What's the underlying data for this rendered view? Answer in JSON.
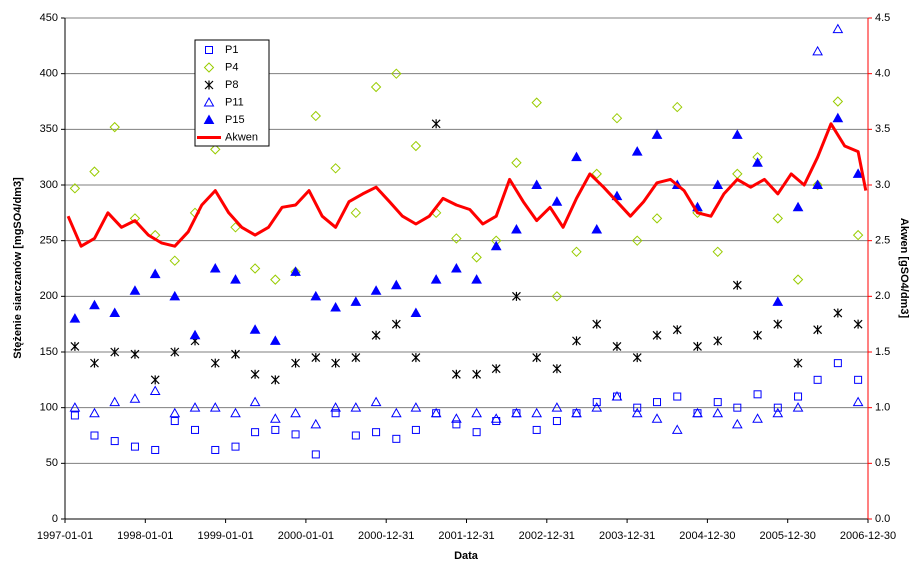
{
  "chart_data": {
    "type": "scatter",
    "x_label": "Data",
    "y_label": "Stężenie siarczanów [mgSO4/dm3]",
    "y2_label": "Akwen [gSO4/dm3]",
    "xlim": [
      "1997-01-01",
      "2006-12-30"
    ],
    "xticks": [
      "1997-01-01",
      "1998-01-01",
      "1999-01-01",
      "2000-01-01",
      "2000-12-31",
      "2001-12-31",
      "2002-12-31",
      "2003-12-31",
      "2004-12-30",
      "2005-12-30",
      "2006-12-30"
    ],
    "ylim": [
      0,
      450
    ],
    "yticks": [
      0,
      50,
      100,
      150,
      200,
      250,
      300,
      350,
      400,
      450
    ],
    "y2lim": [
      0,
      4.5
    ],
    "y2ticks": [
      {
        "value": 0,
        "label": "0.0"
      },
      0.5,
      {
        "value": 1,
        "label": "1.0"
      },
      1.5,
      {
        "value": 2,
        "label": "2.0"
      },
      2.5,
      {
        "value": 3,
        "label": "3.0"
      },
      3.5,
      {
        "value": 4,
        "label": "4.0"
      },
      4.5
    ],
    "grid": true,
    "legend_position": "upper left",
    "series": [
      {
        "name": "P1",
        "marker": "square",
        "color": "#0000ff",
        "x": [
          "1997-02-15",
          "1997-05-15",
          "1997-08-15",
          "1997-11-15",
          "1998-02-15",
          "1998-05-15",
          "1998-08-15",
          "1998-11-15",
          "1999-02-15",
          "1999-05-15",
          "1999-08-15",
          "1999-11-15",
          "2000-02-15",
          "2000-05-15",
          "2000-08-15",
          "2000-11-15",
          "2001-02-15",
          "2001-05-15",
          "2001-08-15",
          "2001-11-15",
          "2002-02-15",
          "2002-05-15",
          "2002-08-15",
          "2002-11-15",
          "2003-02-15",
          "2003-05-15",
          "2003-08-15",
          "2003-11-15",
          "2004-02-15",
          "2004-05-15",
          "2004-08-15",
          "2004-11-15",
          "2005-02-15",
          "2005-05-15",
          "2005-08-15",
          "2005-11-15",
          "2006-02-15",
          "2006-05-15",
          "2006-08-15",
          "2006-11-15"
        ],
        "values": [
          93,
          75,
          70,
          65,
          62,
          88,
          80,
          62,
          65,
          78,
          80,
          76,
          58,
          95,
          75,
          78,
          72,
          80,
          95,
          85,
          78,
          88,
          95,
          80,
          88,
          95,
          105,
          110,
          100,
          105,
          110,
          95,
          105,
          100,
          112,
          100,
          110,
          125,
          140,
          125
        ]
      },
      {
        "name": "P4",
        "marker": "diamond",
        "color": "#99cc00",
        "x": [
          "1997-02-15",
          "1997-05-15",
          "1997-08-15",
          "1997-11-15",
          "1998-02-15",
          "1998-05-15",
          "1998-08-15",
          "1998-11-15",
          "1999-02-15",
          "1999-05-15",
          "1999-08-15",
          "1999-11-15",
          "2000-02-15",
          "2000-05-15",
          "2000-08-15",
          "2000-11-15",
          "2001-02-15",
          "2001-05-15",
          "2001-08-15",
          "2001-11-15",
          "2002-02-15",
          "2002-05-15",
          "2002-08-15",
          "2002-11-15",
          "2003-02-15",
          "2003-05-15",
          "2003-08-15",
          "2003-11-15",
          "2004-02-15",
          "2004-05-15",
          "2004-08-15",
          "2004-11-15",
          "2005-02-15",
          "2005-05-15",
          "2005-08-15",
          "2005-11-15",
          "2006-02-15",
          "2006-05-15",
          "2006-08-15",
          "2006-11-15"
        ],
        "values": [
          297,
          312,
          352,
          270,
          255,
          232,
          275,
          332,
          262,
          225,
          215,
          222,
          362,
          315,
          275,
          388,
          400,
          335,
          275,
          252,
          235,
          250,
          320,
          374,
          200,
          240,
          310,
          360,
          250,
          270,
          370,
          275,
          240,
          310,
          325,
          270,
          215,
          300,
          375,
          255
        ]
      },
      {
        "name": "P8",
        "marker": "asterisk",
        "color": "#000000",
        "x": [
          "1997-02-15",
          "1997-05-15",
          "1997-08-15",
          "1997-11-15",
          "1998-02-15",
          "1998-05-15",
          "1998-08-15",
          "1998-11-15",
          "1999-02-15",
          "1999-05-15",
          "1999-08-15",
          "1999-11-15",
          "2000-02-15",
          "2000-05-15",
          "2000-08-15",
          "2000-11-15",
          "2001-02-15",
          "2001-05-15",
          "2001-08-15",
          "2001-11-15",
          "2002-02-15",
          "2002-05-15",
          "2002-08-15",
          "2002-11-15",
          "2003-02-15",
          "2003-05-15",
          "2003-08-15",
          "2003-11-15",
          "2004-02-15",
          "2004-05-15",
          "2004-08-15",
          "2004-11-15",
          "2005-02-15",
          "2005-05-15",
          "2005-08-15",
          "2005-11-15",
          "2006-02-15",
          "2006-05-15",
          "2006-08-15",
          "2006-11-15"
        ],
        "values": [
          155,
          140,
          150,
          148,
          125,
          150,
          160,
          140,
          148,
          130,
          125,
          140,
          145,
          140,
          145,
          165,
          175,
          145,
          355,
          130,
          130,
          135,
          200,
          145,
          135,
          160,
          175,
          155,
          145,
          165,
          170,
          155,
          160,
          210,
          165,
          175,
          140,
          170,
          185,
          175
        ]
      },
      {
        "name": "P11",
        "marker": "triangle-open",
        "color": "#0000ff",
        "x": [
          "1997-02-15",
          "1997-05-15",
          "1997-08-15",
          "1997-11-15",
          "1998-02-15",
          "1998-05-15",
          "1998-08-15",
          "1998-11-15",
          "1999-02-15",
          "1999-05-15",
          "1999-08-15",
          "1999-11-15",
          "2000-02-15",
          "2000-05-15",
          "2000-08-15",
          "2000-11-15",
          "2001-02-15",
          "2001-05-15",
          "2001-08-15",
          "2001-11-15",
          "2002-02-15",
          "2002-05-15",
          "2002-08-15",
          "2002-11-15",
          "2003-02-15",
          "2003-05-15",
          "2003-08-15",
          "2003-11-15",
          "2004-02-15",
          "2004-05-15",
          "2004-08-15",
          "2004-11-15",
          "2005-02-15",
          "2005-05-15",
          "2005-08-15",
          "2005-11-15",
          "2006-02-15",
          "2006-05-15",
          "2006-08-15",
          "2006-11-15"
        ],
        "values": [
          100,
          95,
          105,
          108,
          115,
          95,
          100,
          100,
          95,
          105,
          90,
          95,
          85,
          100,
          100,
          105,
          95,
          100,
          95,
          90,
          95,
          90,
          95,
          95,
          100,
          95,
          100,
          110,
          95,
          90,
          80,
          95,
          95,
          85,
          90,
          95,
          100,
          420,
          440,
          105
        ]
      },
      {
        "name": "P15",
        "marker": "triangle-filled",
        "color": "#0000ff",
        "x": [
          "1997-02-15",
          "1997-05-15",
          "1997-08-15",
          "1997-11-15",
          "1998-02-15",
          "1998-05-15",
          "1998-08-15",
          "1998-11-15",
          "1999-02-15",
          "1999-05-15",
          "1999-08-15",
          "1999-11-15",
          "2000-02-15",
          "2000-05-15",
          "2000-08-15",
          "2000-11-15",
          "2001-02-15",
          "2001-05-15",
          "2001-08-15",
          "2001-11-15",
          "2002-02-15",
          "2002-05-15",
          "2002-08-15",
          "2002-11-15",
          "2003-02-15",
          "2003-05-15",
          "2003-08-15",
          "2003-11-15",
          "2004-02-15",
          "2004-05-15",
          "2004-08-15",
          "2004-11-15",
          "2005-02-15",
          "2005-05-15",
          "2005-08-15",
          "2005-11-15",
          "2006-02-15",
          "2006-05-15",
          "2006-08-15",
          "2006-11-15"
        ],
        "values": [
          180,
          192,
          185,
          205,
          220,
          200,
          165,
          225,
          215,
          170,
          160,
          222,
          200,
          190,
          195,
          205,
          210,
          185,
          215,
          225,
          215,
          245,
          260,
          300,
          285,
          325,
          260,
          290,
          330,
          345,
          300,
          280,
          300,
          345,
          320,
          195,
          280,
          300,
          360,
          310
        ]
      },
      {
        "name": "Akwen",
        "marker": "line",
        "color": "#ff0000",
        "axis": "y2",
        "x": [
          "1997-01-15",
          "1997-03-15",
          "1997-05-15",
          "1997-07-15",
          "1997-09-15",
          "1997-11-15",
          "1998-01-15",
          "1998-03-15",
          "1998-05-15",
          "1998-07-15",
          "1998-09-15",
          "1998-11-15",
          "1999-01-15",
          "1999-03-15",
          "1999-05-15",
          "1999-07-15",
          "1999-09-15",
          "1999-11-15",
          "2000-01-15",
          "2000-03-15",
          "2000-05-15",
          "2000-07-15",
          "2000-09-15",
          "2000-11-15",
          "2001-01-15",
          "2001-03-15",
          "2001-05-15",
          "2001-07-15",
          "2001-09-15",
          "2001-11-15",
          "2002-01-15",
          "2002-03-15",
          "2002-05-15",
          "2002-07-15",
          "2002-09-15",
          "2002-11-15",
          "2003-01-15",
          "2003-03-15",
          "2003-05-15",
          "2003-07-15",
          "2003-09-15",
          "2003-11-15",
          "2004-01-15",
          "2004-03-15",
          "2004-05-15",
          "2004-07-15",
          "2004-09-15",
          "2004-11-15",
          "2005-01-15",
          "2005-03-15",
          "2005-05-15",
          "2005-07-15",
          "2005-09-15",
          "2005-11-15",
          "2006-01-15",
          "2006-03-15",
          "2006-05-15",
          "2006-07-15",
          "2006-09-15",
          "2006-11-15",
          "2006-12-20"
        ],
        "values": [
          2.72,
          2.45,
          2.52,
          2.75,
          2.62,
          2.68,
          2.55,
          2.48,
          2.45,
          2.58,
          2.82,
          2.95,
          2.75,
          2.62,
          2.55,
          2.62,
          2.8,
          2.82,
          2.95,
          2.72,
          2.62,
          2.85,
          2.92,
          2.98,
          2.85,
          2.72,
          2.65,
          2.72,
          2.88,
          2.82,
          2.78,
          2.65,
          2.72,
          3.05,
          2.85,
          2.68,
          2.8,
          2.62,
          2.88,
          3.1,
          2.98,
          2.85,
          2.72,
          2.85,
          3.02,
          3.05,
          2.95,
          2.75,
          2.72,
          2.92,
          3.05,
          2.98,
          3.05,
          2.92,
          3.1,
          3,
          3.25,
          3.55,
          3.35,
          3.3,
          2.95
        ]
      }
    ]
  }
}
